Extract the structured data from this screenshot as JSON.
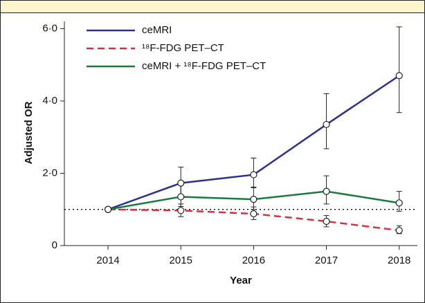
{
  "chart_data": {
    "type": "line",
    "x": [
      2014,
      2015,
      2016,
      2017,
      2018
    ],
    "xlim": [
      2013.4,
      2018.25
    ],
    "xticks": [
      2014,
      2015,
      2016,
      2017,
      2018
    ],
    "ylim": [
      0,
      6.2
    ],
    "yticks": [
      0,
      {
        "value": 2,
        "label": "2·0"
      },
      {
        "value": 4,
        "label": "4·0"
      },
      {
        "value": 6,
        "label": "6·0"
      }
    ],
    "x_label": "Year",
    "y_label": "Adjusted OR",
    "reference_line": 1,
    "legend": "upper left",
    "series": [
      {
        "name": "ceMRI",
        "color": "#2b3190",
        "line_style": "solid",
        "values": [
          1.0,
          1.73,
          1.96,
          3.35,
          4.7
        ],
        "error_low": [
          null,
          1.3,
          1.6,
          2.68,
          3.68
        ],
        "error_high": [
          null,
          2.17,
          2.42,
          4.2,
          6.05
        ]
      },
      {
        "name": "¹⁸F-FDG PET–CT",
        "color": "#d8303a",
        "line_style": "dashed",
        "values": [
          1.0,
          0.97,
          0.88,
          0.67,
          0.42
        ],
        "error_low": [
          null,
          0.8,
          0.72,
          0.52,
          0.33
        ],
        "error_high": [
          null,
          1.15,
          1.07,
          0.83,
          0.55
        ]
      },
      {
        "name": "ceMRI + ¹⁸F-FDG PET–CT",
        "color": "#187a3c",
        "line_style": "solid",
        "values": [
          1.0,
          1.35,
          1.28,
          1.5,
          1.18
        ],
        "error_low": [
          null,
          1.08,
          1.0,
          1.15,
          0.95
        ],
        "error_high": [
          null,
          1.7,
          1.62,
          1.93,
          1.5
        ]
      }
    ]
  }
}
